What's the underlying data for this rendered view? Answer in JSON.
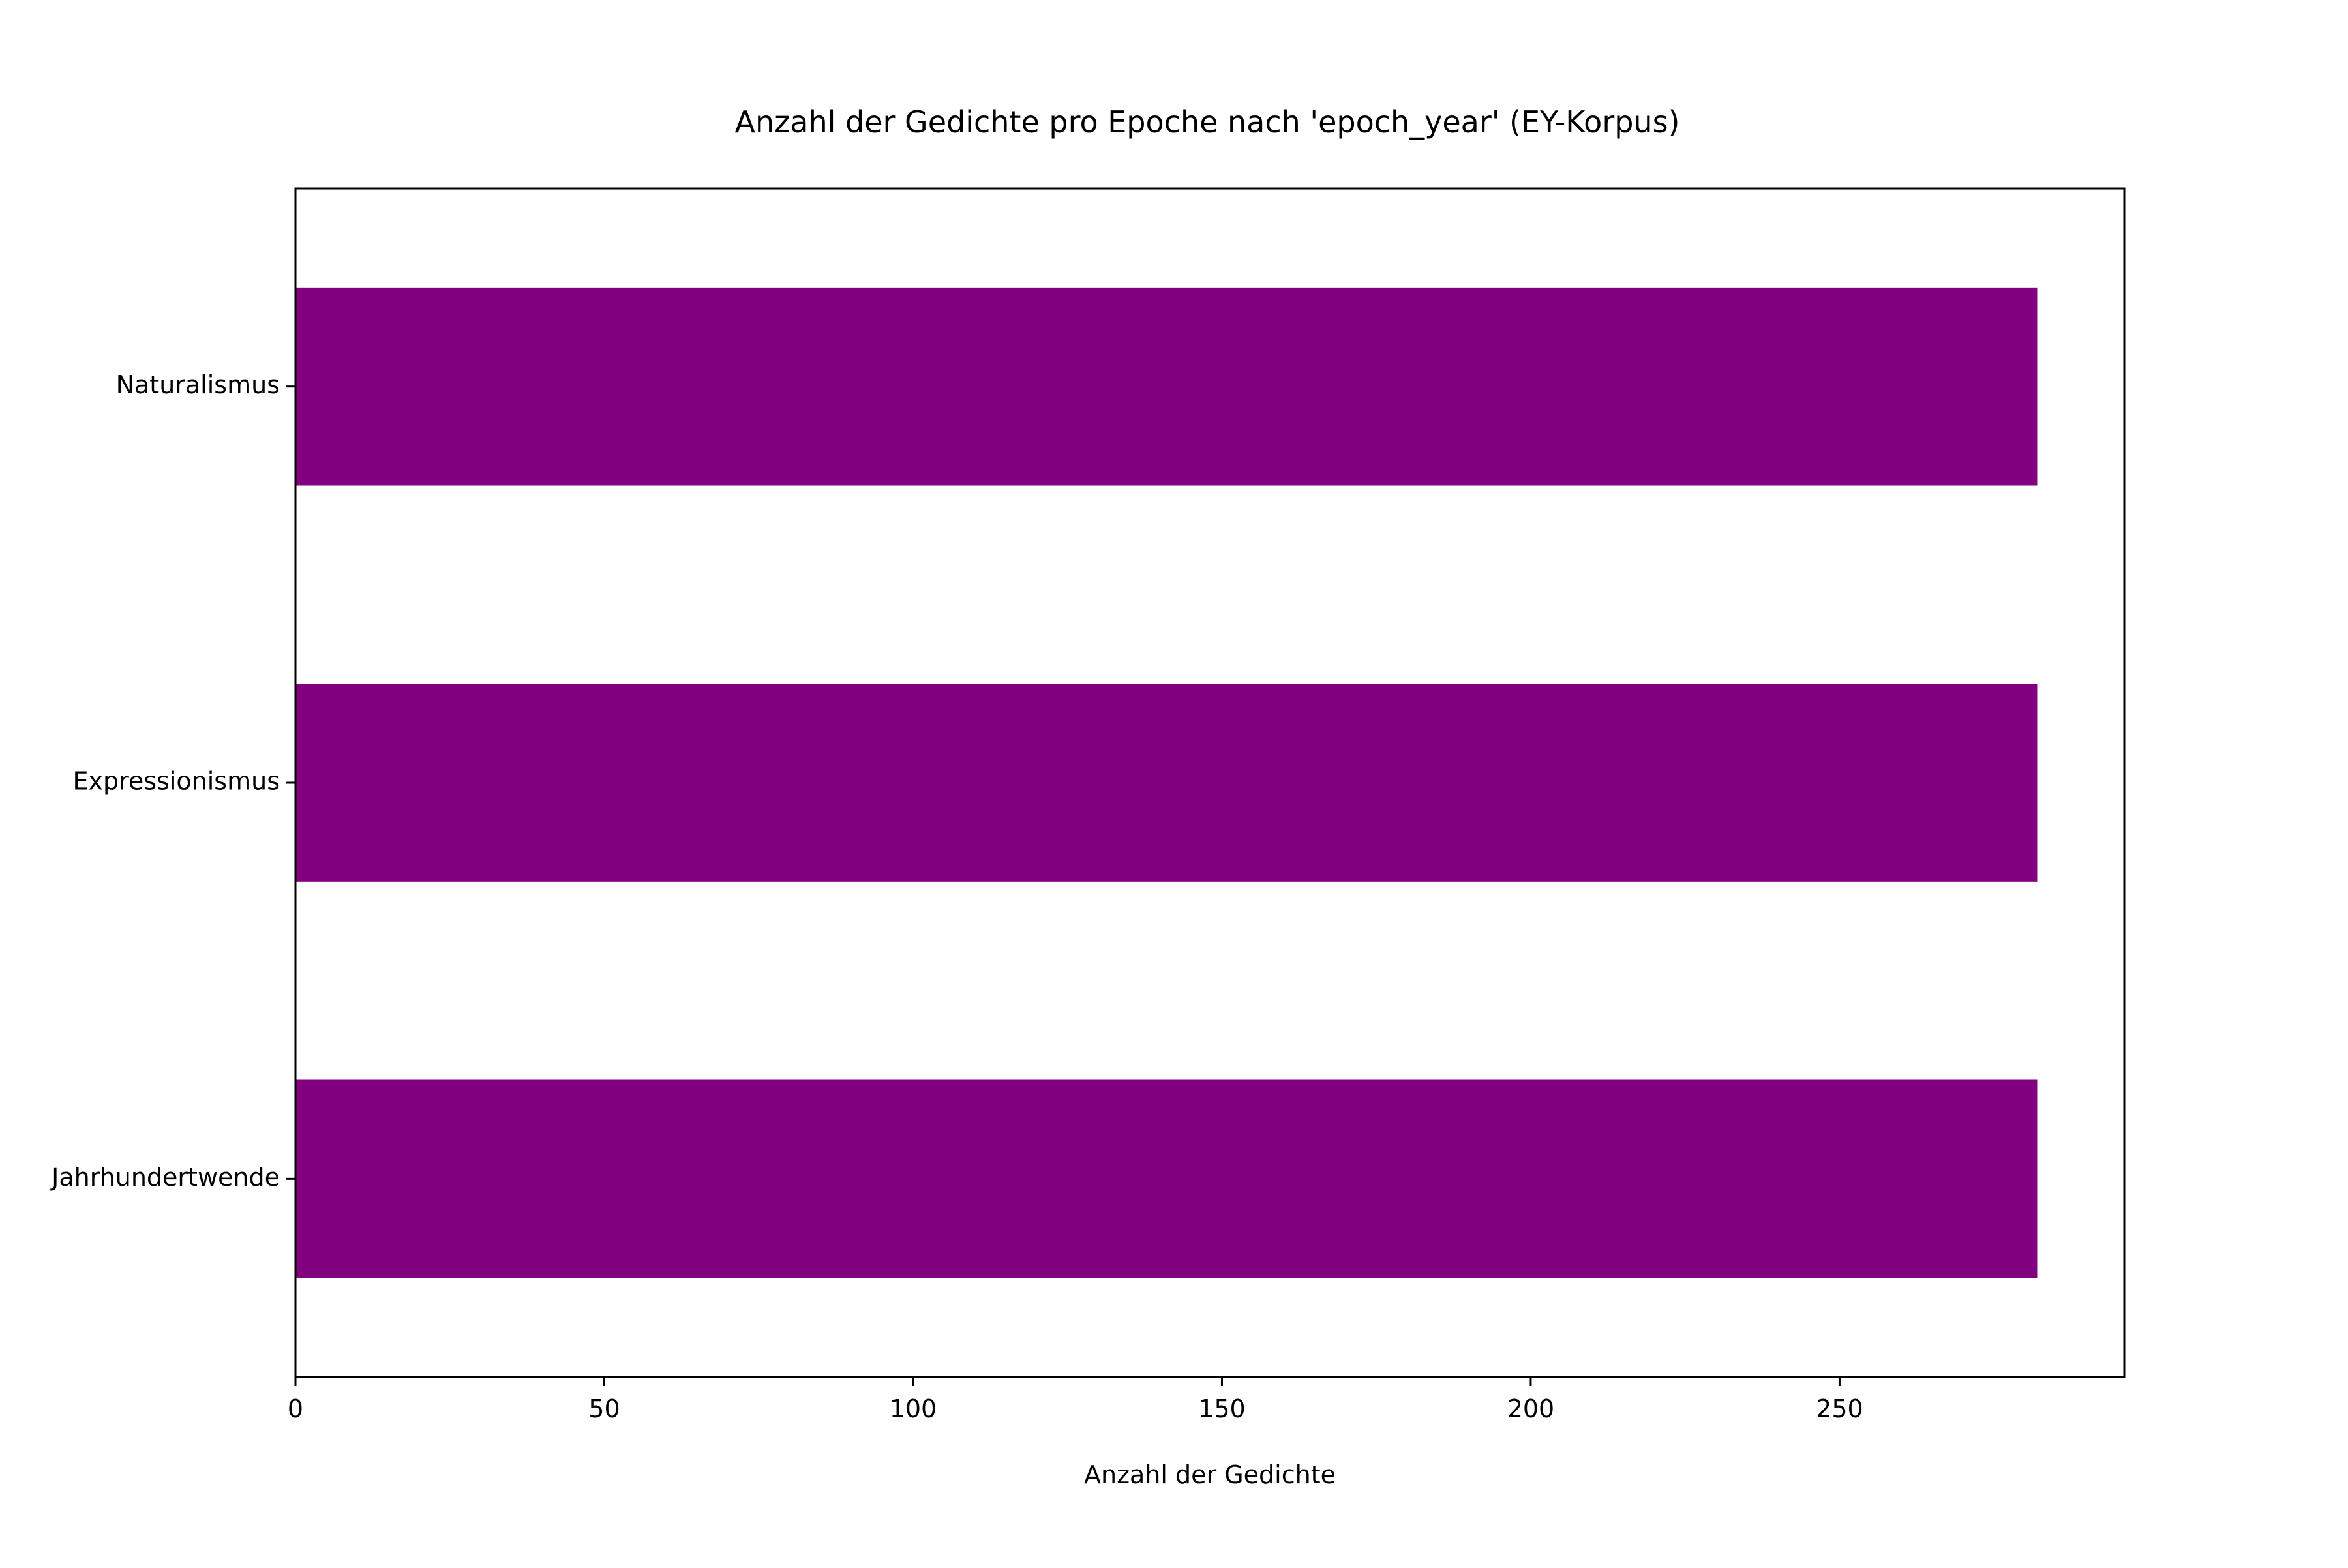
{
  "chart_data": {
    "type": "bar",
    "orientation": "horizontal",
    "title": "Anzahl der Gedichte pro Epoche nach 'epoch_year' (EY-Korpus)",
    "xlabel": "Anzahl der Gedichte",
    "ylabel": "",
    "categories": [
      "Naturalismus",
      "Expressionismus",
      "Jahrhundertwende"
    ],
    "values": [
      282,
      282,
      282
    ],
    "xlim": [
      0,
      296.1
    ],
    "xticks": [
      0,
      50,
      100,
      150,
      200,
      250
    ],
    "bar_color": "#800080",
    "grid": false,
    "legend": "none"
  }
}
